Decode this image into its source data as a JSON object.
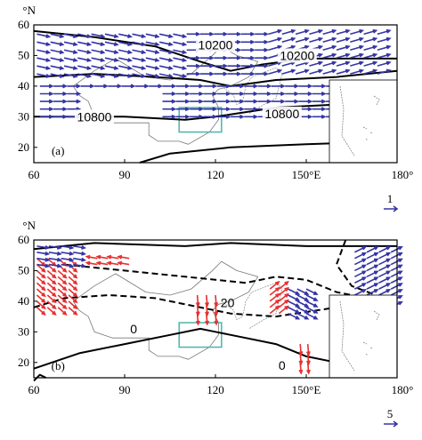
{
  "panels": [
    {
      "label": "(a)",
      "xticks": [
        "60",
        "90",
        "120",
        "150°E",
        "180°"
      ],
      "yticks": [
        "20",
        "30",
        "40",
        "50",
        "60"
      ],
      "yunit": "°N",
      "contour_labels": [
        "10200",
        "10200",
        "10800",
        "10800"
      ],
      "scale": "1"
    },
    {
      "label": "(b)",
      "xticks": [
        "60",
        "90",
        "120",
        "150°E",
        "180°"
      ],
      "yticks": [
        "20",
        "30",
        "40",
        "50",
        "60"
      ],
      "yunit": "°N",
      "contour_labels": [
        "0",
        "0",
        "20"
      ],
      "scale": "5"
    }
  ]
}
